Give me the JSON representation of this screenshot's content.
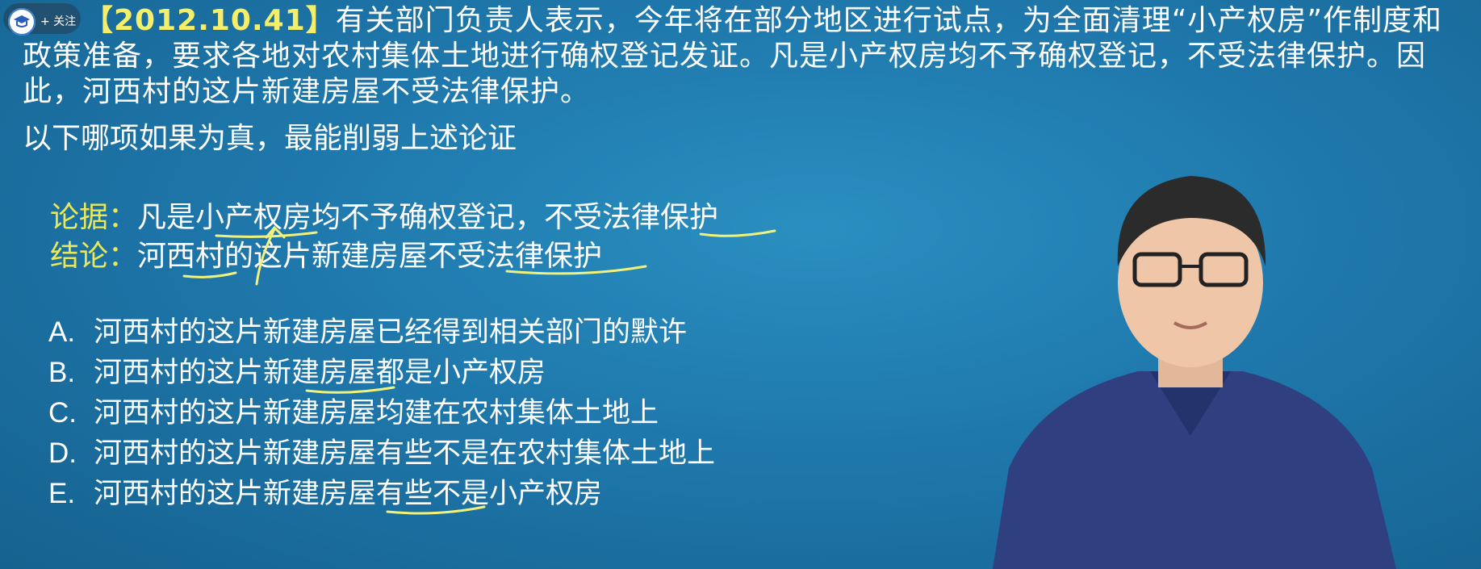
{
  "header": {
    "follow_label": "+ 关注"
  },
  "question": {
    "tag": "【2012.10.41】",
    "stem": "有关部门负责人表示，今年将在部分地区进行试点，为全面清理“小产权房”作制度和政策准备，要求各地对农村集体土地进行确权登记发证。凡是小产权房均不予确权登记，不受法律保护。因此，河西村的这片新建房屋不受法律保护。",
    "prompt": "以下哪项如果为真，最能削弱上述论证"
  },
  "analysis": {
    "premise_label": "论据：",
    "premise_text": "凡是小产权房均不予确权登记，不受法律保护",
    "conclusion_label": "结论：",
    "conclusion_text": "河西村的这片新建房屋不受法律保护"
  },
  "options": [
    {
      "letter": "A.",
      "text": "河西村的这片新建房屋已经得到相关部门的默许"
    },
    {
      "letter": "B.",
      "text": "河西村的这片新建房屋都是小产权房"
    },
    {
      "letter": "C.",
      "text": "河西村的这片新建房屋均建在农村集体土地上"
    },
    {
      "letter": "D.",
      "text": "河西村的这片新建房屋有些不是在农村集体土地上"
    },
    {
      "letter": "E.",
      "text": "河西村的这片新建房屋有些不是小产权房"
    }
  ],
  "colors": {
    "background": "#1f78ac",
    "highlight_label": "#e9e85a",
    "annotation": "#f2f27a"
  },
  "icons": [
    "channel-logo-icon"
  ]
}
